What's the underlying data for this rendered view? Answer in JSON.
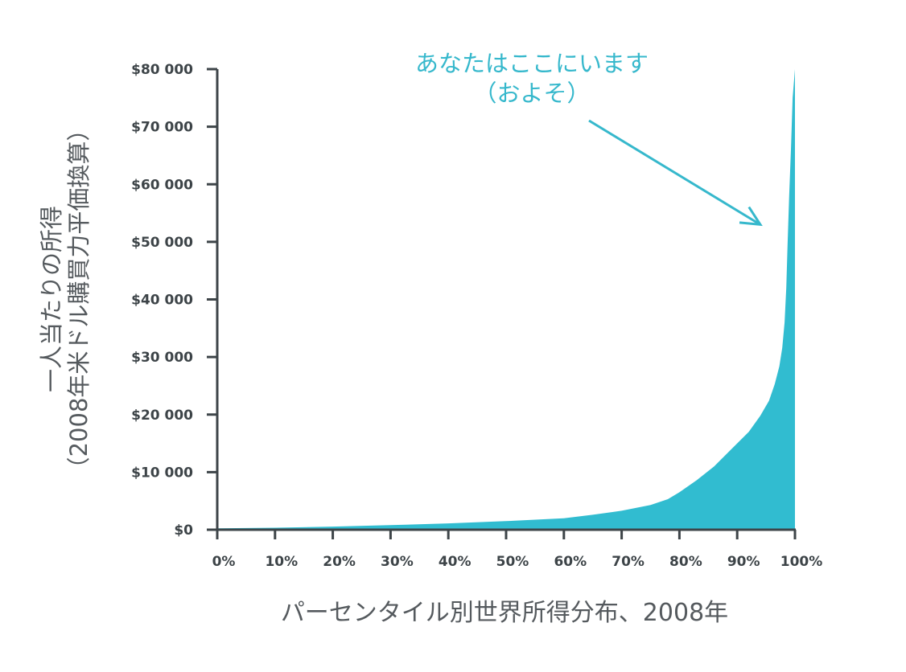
{
  "chart_data": {
    "type": "area",
    "title": "",
    "xlabel": "パーセンタイル別世界所得分布、2008年",
    "ylabel": [
      "一人当たりの所得",
      "（2008年米ドル購買力平価換算）"
    ],
    "x_ticks": [
      "0%",
      "10%",
      "20%",
      "30%",
      "40%",
      "50%",
      "60%",
      "70%",
      "80%",
      "90%",
      "100%"
    ],
    "y_ticks": [
      "$0",
      "$10 000",
      "$20 000",
      "$30 000",
      "$40 000",
      "$50 000",
      "$60 000",
      "$70 000",
      "$80 000"
    ],
    "xlim": [
      0,
      100
    ],
    "ylim": [
      0,
      80000
    ],
    "grid": false,
    "series": [
      {
        "x": [
          0,
          10,
          20,
          30,
          40,
          50,
          60,
          65,
          70,
          75,
          78,
          80,
          83,
          86,
          89,
          92,
          94,
          95.5,
          96.5,
          97.3,
          97.8,
          98.2,
          98.5,
          98.7,
          99,
          99.3,
          99.6,
          100
        ],
        "values": [
          250,
          350,
          550,
          800,
          1100,
          1500,
          2000,
          2600,
          3300,
          4300,
          5300,
          6500,
          8600,
          11000,
          14000,
          17000,
          19800,
          22400,
          25300,
          28400,
          31600,
          36000,
          42000,
          49000,
          58000,
          66000,
          75000,
          80000
        ]
      }
    ],
    "colors": {
      "area": "#31bcd0",
      "axis": "#3d4448",
      "annotation": "#36b8cc"
    },
    "annotation": {
      "lines": [
        "あなたはここにいます",
        "（およそ）"
      ],
      "points_to": {
        "x": 94,
        "y": 53000
      }
    }
  }
}
